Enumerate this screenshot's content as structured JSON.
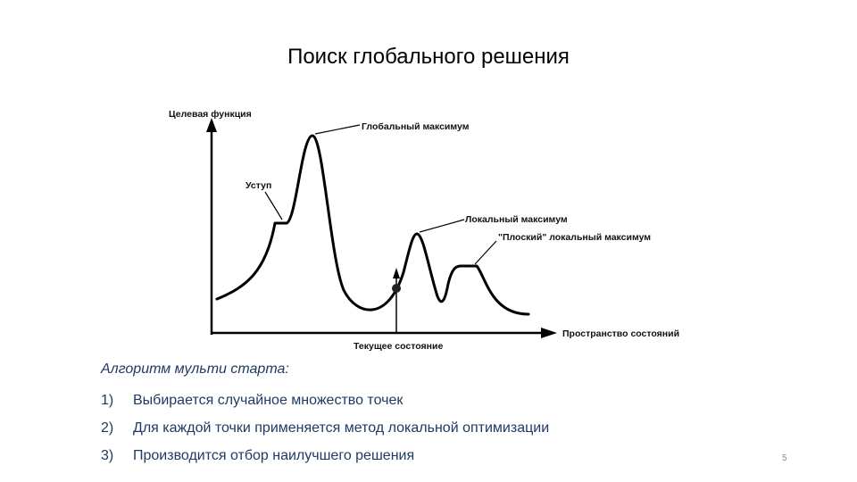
{
  "slide": {
    "title": "Поиск глобального решения",
    "page_number": "5"
  },
  "diagram": {
    "y_axis_label": "Целевая функция",
    "x_axis_label": "Пространство состояний",
    "current_state_label": "Текущее состояние",
    "annotations": {
      "global_max": "Глобальный максимум",
      "shoulder": "Уступ",
      "local_max": "Локальный максимум",
      "flat_local_max": "\"Плоский\" локальный максимум"
    }
  },
  "algorithm": {
    "heading": "Алгоритм мульти старта:",
    "steps": [
      {
        "num": "1)",
        "text": "Выбирается случайное множество точек"
      },
      {
        "num": "2)",
        "text": "Для каждой точки применяется метод локальной оптимизации"
      },
      {
        "num": "3)",
        "text": "Производится отбор наилучшего решения"
      }
    ]
  }
}
